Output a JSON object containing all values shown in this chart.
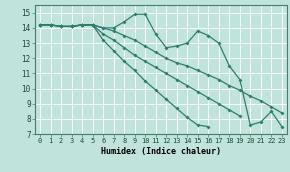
{
  "xlabel": "Humidex (Indice chaleur)",
  "xlim": [
    -0.5,
    23.5
  ],
  "ylim": [
    7,
    15.5
  ],
  "yticks": [
    7,
    8,
    9,
    10,
    11,
    12,
    13,
    14,
    15
  ],
  "xticks": [
    0,
    1,
    2,
    3,
    4,
    5,
    6,
    7,
    8,
    9,
    10,
    11,
    12,
    13,
    14,
    15,
    16,
    17,
    18,
    19,
    20,
    21,
    22,
    23
  ],
  "background_color": "#c0e4dc",
  "grid_color": "#ffffff",
  "line_color": "#2e7d6e",
  "line1_x": [
    0,
    1,
    2,
    3,
    4,
    5,
    6,
    7,
    8,
    9,
    10,
    11,
    12,
    13,
    14,
    15,
    16,
    17,
    18,
    19,
    20,
    21,
    22,
    23
  ],
  "line1_y": [
    14.2,
    14.2,
    14.1,
    14.1,
    14.2,
    14.2,
    14.0,
    14.0,
    14.4,
    14.9,
    14.9,
    13.6,
    12.7,
    12.8,
    13.0,
    13.8,
    13.5,
    13.0,
    11.5,
    10.6,
    7.6,
    7.8,
    8.5,
    7.5
  ],
  "line2_x": [
    0,
    1,
    2,
    3,
    4,
    5,
    6,
    7,
    8,
    9,
    10,
    11,
    12,
    13,
    14,
    15,
    16,
    17,
    18,
    19,
    20,
    21,
    22,
    23
  ],
  "line2_y": [
    14.2,
    14.2,
    14.1,
    14.1,
    14.2,
    14.2,
    14.0,
    13.8,
    13.5,
    13.2,
    12.8,
    12.4,
    12.0,
    11.7,
    11.5,
    11.2,
    10.9,
    10.6,
    10.2,
    9.9,
    9.5,
    9.2,
    8.8,
    8.4
  ],
  "line3_x": [
    0,
    1,
    2,
    3,
    4,
    5,
    6,
    7,
    8,
    9,
    10,
    11,
    12,
    13,
    14,
    15,
    16,
    17,
    18,
    19
  ],
  "line3_y": [
    14.2,
    14.2,
    14.1,
    14.1,
    14.2,
    14.2,
    13.6,
    13.2,
    12.7,
    12.2,
    11.8,
    11.4,
    11.0,
    10.6,
    10.2,
    9.8,
    9.4,
    9.0,
    8.6,
    8.2
  ],
  "line4_x": [
    0,
    1,
    2,
    3,
    4,
    5,
    6,
    7,
    8,
    9,
    10,
    11,
    12,
    13,
    14,
    15,
    16,
    17,
    18,
    19,
    20,
    21,
    22,
    23
  ],
  "line4_y": [
    14.2,
    14.2,
    14.1,
    14.1,
    14.2,
    14.2,
    13.2,
    12.5,
    11.8,
    11.2,
    10.5,
    9.9,
    9.3,
    8.7,
    8.1,
    7.6,
    7.5,
    null,
    null,
    null,
    null,
    null,
    null,
    null
  ]
}
